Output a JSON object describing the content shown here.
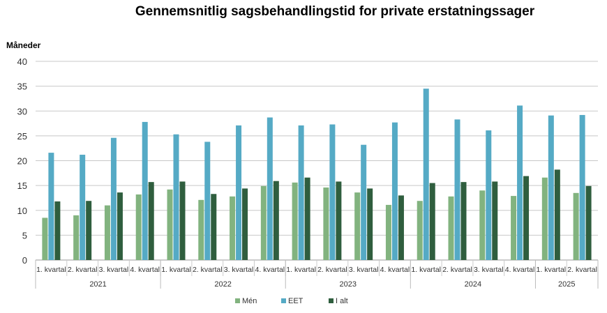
{
  "chart_data": {
    "type": "bar",
    "title": "Gennemsnitlig sagsbehandlingstid for private erstatningssager",
    "ylabel": "Måneder",
    "xlabel": "",
    "ylim": [
      0,
      40
    ],
    "yticks": [
      0,
      5,
      10,
      15,
      20,
      25,
      30,
      35,
      40
    ],
    "grid": true,
    "legend_position": "bottom",
    "categories": [
      "1. kvartal",
      "2. kvartal",
      "3. kvartal",
      "4. kvartal",
      "1. kvartal",
      "2. kvartal",
      "3. kvartal",
      "4. kvartal",
      "1. kvartal",
      "2. kvartal",
      "3. kvartal",
      "4. kvartal",
      "1. kvartal",
      "2. kvartal",
      "3. kvartal",
      "4. kvartal",
      "1. kvartal",
      "2. kvartal"
    ],
    "groups": [
      {
        "label": "2021",
        "count": 4
      },
      {
        "label": "2022",
        "count": 4
      },
      {
        "label": "2023",
        "count": 4
      },
      {
        "label": "2024",
        "count": 4
      },
      {
        "label": "2025",
        "count": 2
      }
    ],
    "series": [
      {
        "name": "Mén",
        "color": "#82b37f",
        "values": [
          8.5,
          9.0,
          11.0,
          13.2,
          14.2,
          12.1,
          12.8,
          14.9,
          15.6,
          14.6,
          13.6,
          11.1,
          11.9,
          12.8,
          14.0,
          12.9,
          16.6,
          13.5
        ]
      },
      {
        "name": "EET",
        "color": "#55aac5",
        "values": [
          21.6,
          21.2,
          24.6,
          27.8,
          25.3,
          23.8,
          27.1,
          28.7,
          27.1,
          27.3,
          23.2,
          27.7,
          34.5,
          28.3,
          26.1,
          31.1,
          29.1,
          29.2
        ]
      },
      {
        "name": "I alt",
        "color": "#2f5e3e",
        "values": [
          11.8,
          11.9,
          13.6,
          15.7,
          15.8,
          13.3,
          14.4,
          15.9,
          16.6,
          15.8,
          14.4,
          13.0,
          15.5,
          15.7,
          15.8,
          16.9,
          18.2,
          14.9
        ]
      }
    ]
  }
}
